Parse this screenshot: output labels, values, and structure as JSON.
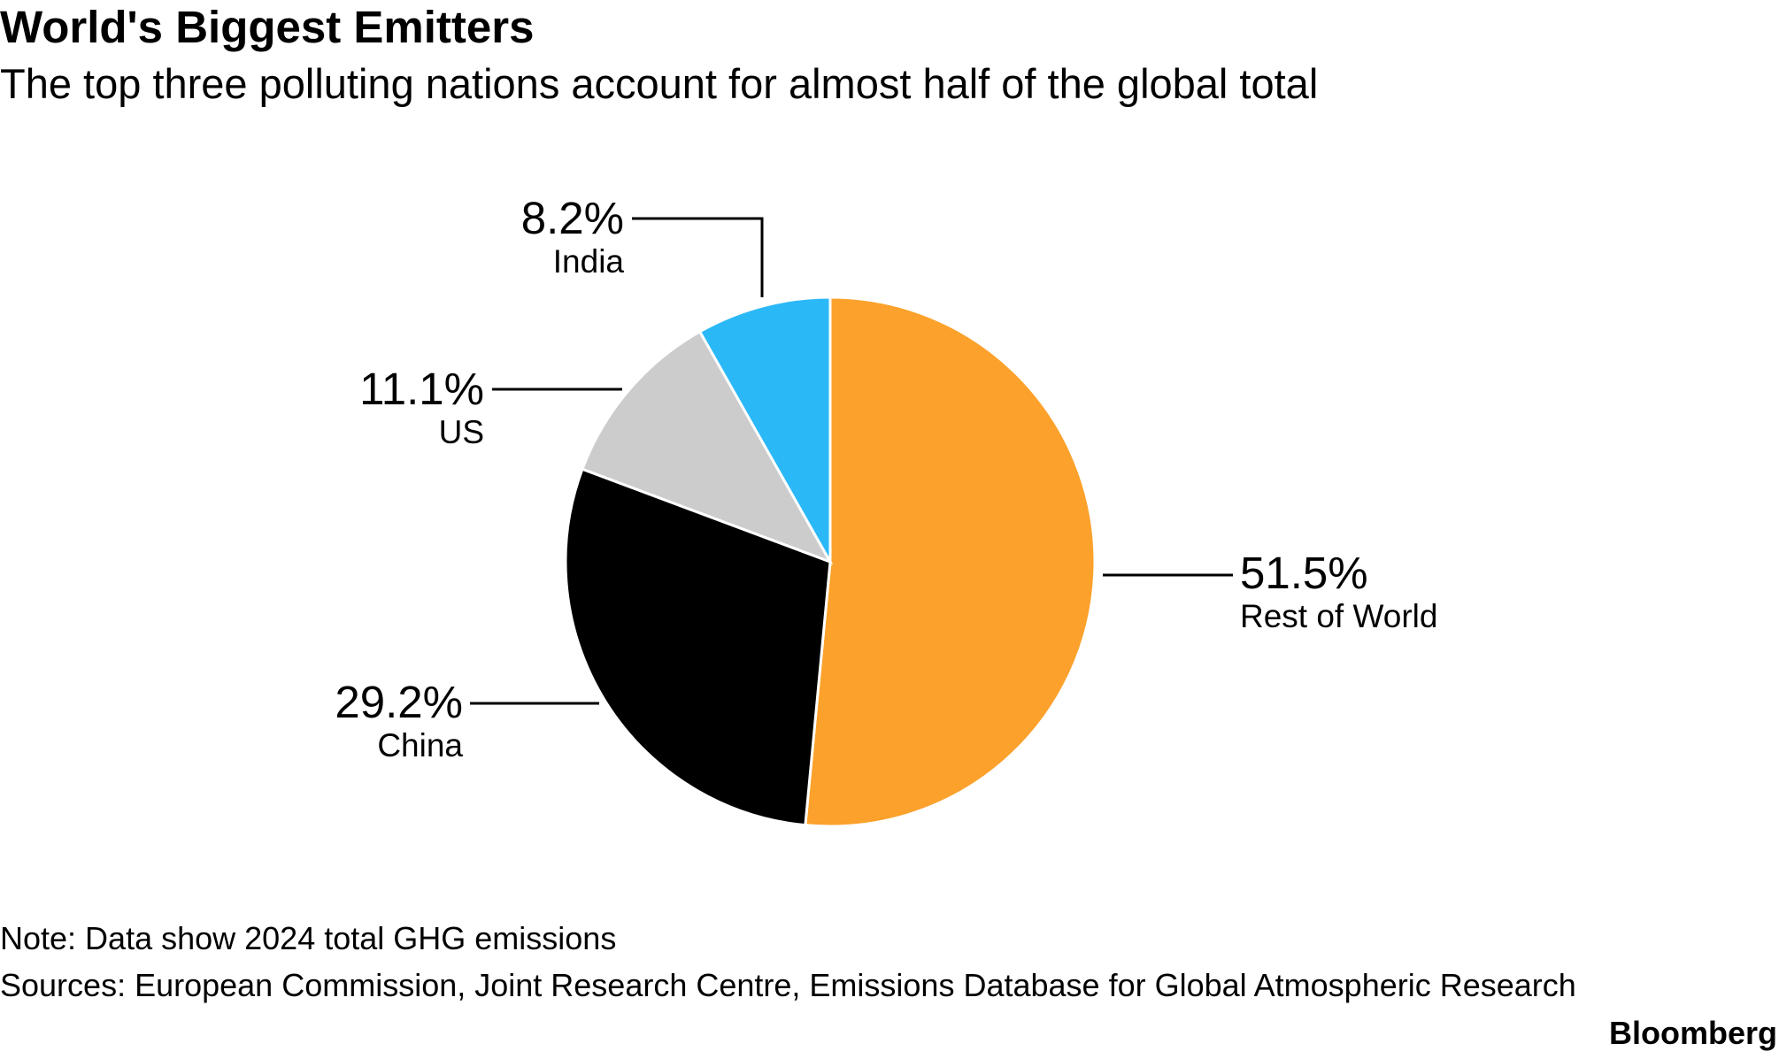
{
  "chart_data": {
    "type": "pie",
    "title": "World's Biggest Emitters",
    "subtitle": "The top three polluting nations account for almost half of the global total",
    "categories": [
      "Rest of World",
      "China",
      "US",
      "India"
    ],
    "values": [
      51.5,
      29.2,
      11.1,
      8.2
    ],
    "value_labels": [
      "51.5%",
      "29.2%",
      "11.1%",
      "8.2%"
    ],
    "colors": [
      "#fca12b",
      "#000000",
      "#cccccc",
      "#2bb8f7"
    ],
    "note": "Note: Data show 2024 total GHG emissions",
    "source": "Sources: European Commission, Joint Research Centre, Emissions Database for Global Atmospheric Research",
    "brand": "Bloomberg"
  }
}
